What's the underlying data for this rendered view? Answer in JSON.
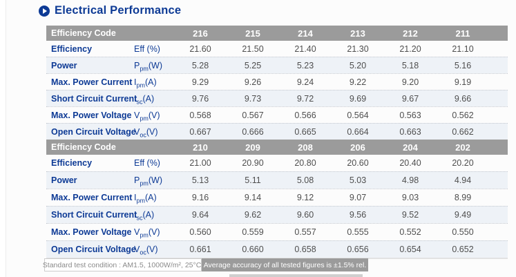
{
  "title": "Electrical Performance",
  "table": {
    "header_label": "Efficiency Code",
    "sections": [
      {
        "codes": [
          "216",
          "215",
          "214",
          "213",
          "212",
          "211"
        ],
        "rows": [
          {
            "label": "Efficiency",
            "unit_pre": "Eff (%)",
            "unit_sub": "",
            "unit_post": "",
            "values": [
              "21.60",
              "21.50",
              "21.40",
              "21.30",
              "21.20",
              "21.10"
            ]
          },
          {
            "label": "Power",
            "unit_pre": "P",
            "unit_sub": "pm",
            "unit_post": "(W)",
            "values": [
              "5.28",
              "5.25",
              "5.23",
              "5.20",
              "5.18",
              "5.16"
            ]
          },
          {
            "label": "Max. Power Current",
            "unit_pre": "I",
            "unit_sub": "pm",
            "unit_post": "(A)",
            "values": [
              "9.29",
              "9.26",
              "9.24",
              "9.22",
              "9.20",
              "9.19"
            ]
          },
          {
            "label": "Short Circuit Current",
            "unit_pre": "I",
            "unit_sub": "sc",
            "unit_post": "(A)",
            "values": [
              "9.76",
              "9.73",
              "9.72",
              "9.69",
              "9.67",
              "9.66"
            ]
          },
          {
            "label": "Max. Power Voltage",
            "unit_pre": "V",
            "unit_sub": "pm",
            "unit_post": "(V)",
            "values": [
              "0.568",
              "0.567",
              "0.566",
              "0.564",
              "0.563",
              "0.562"
            ]
          },
          {
            "label": "Open Circuit Voltage",
            "unit_pre": "V",
            "unit_sub": "oc",
            "unit_post": "(V)",
            "values": [
              "0.667",
              "0.666",
              "0.665",
              "0.664",
              "0.663",
              "0.662"
            ]
          }
        ]
      },
      {
        "codes": [
          "210",
          "209",
          "208",
          "206",
          "204",
          "202"
        ],
        "rows": [
          {
            "label": "Efficiency",
            "unit_pre": "Eff (%)",
            "unit_sub": "",
            "unit_post": "",
            "values": [
              "21.00",
              "20.90",
              "20.80",
              "20.60",
              "20.40",
              "20.20"
            ]
          },
          {
            "label": "Power",
            "unit_pre": "P",
            "unit_sub": "pm",
            "unit_post": "(W)",
            "values": [
              "5.13",
              "5.11",
              "5.08",
              "5.03",
              "4.98",
              "4.94"
            ]
          },
          {
            "label": "Max. Power Current",
            "unit_pre": "I",
            "unit_sub": "pm",
            "unit_post": "(A)",
            "values": [
              "9.16",
              "9.14",
              "9.12",
              "9.07",
              "9.03",
              "8.99"
            ]
          },
          {
            "label": "Short Circuit Current",
            "unit_pre": "I",
            "unit_sub": "sc",
            "unit_post": "(A)",
            "values": [
              "9.64",
              "9.62",
              "9.60",
              "9.56",
              "9.52",
              "9.49"
            ]
          },
          {
            "label": "Max. Power Voltage",
            "unit_pre": "V",
            "unit_sub": "pm",
            "unit_post": "(V)",
            "values": [
              "0.560",
              "0.559",
              "0.557",
              "0.555",
              "0.552",
              "0.550"
            ]
          },
          {
            "label": "Open Circuit Voltage",
            "unit_pre": "V",
            "unit_sub": "oc",
            "unit_post": "(V)",
            "values": [
              "0.661",
              "0.660",
              "0.658",
              "0.656",
              "0.654",
              "0.652"
            ]
          }
        ]
      }
    ]
  },
  "footer": {
    "condition": "Standard test condition : AM1.5, 1000W/m², 25°C.",
    "accuracy": "Average accuracy of all tested figures is ±1.5% rel."
  },
  "colors": {
    "accent_blue": "#0d3a95",
    "header_gray": "#9b9b9b",
    "row_alt": "#eef2f7",
    "value_text": "#4e4e4e"
  }
}
